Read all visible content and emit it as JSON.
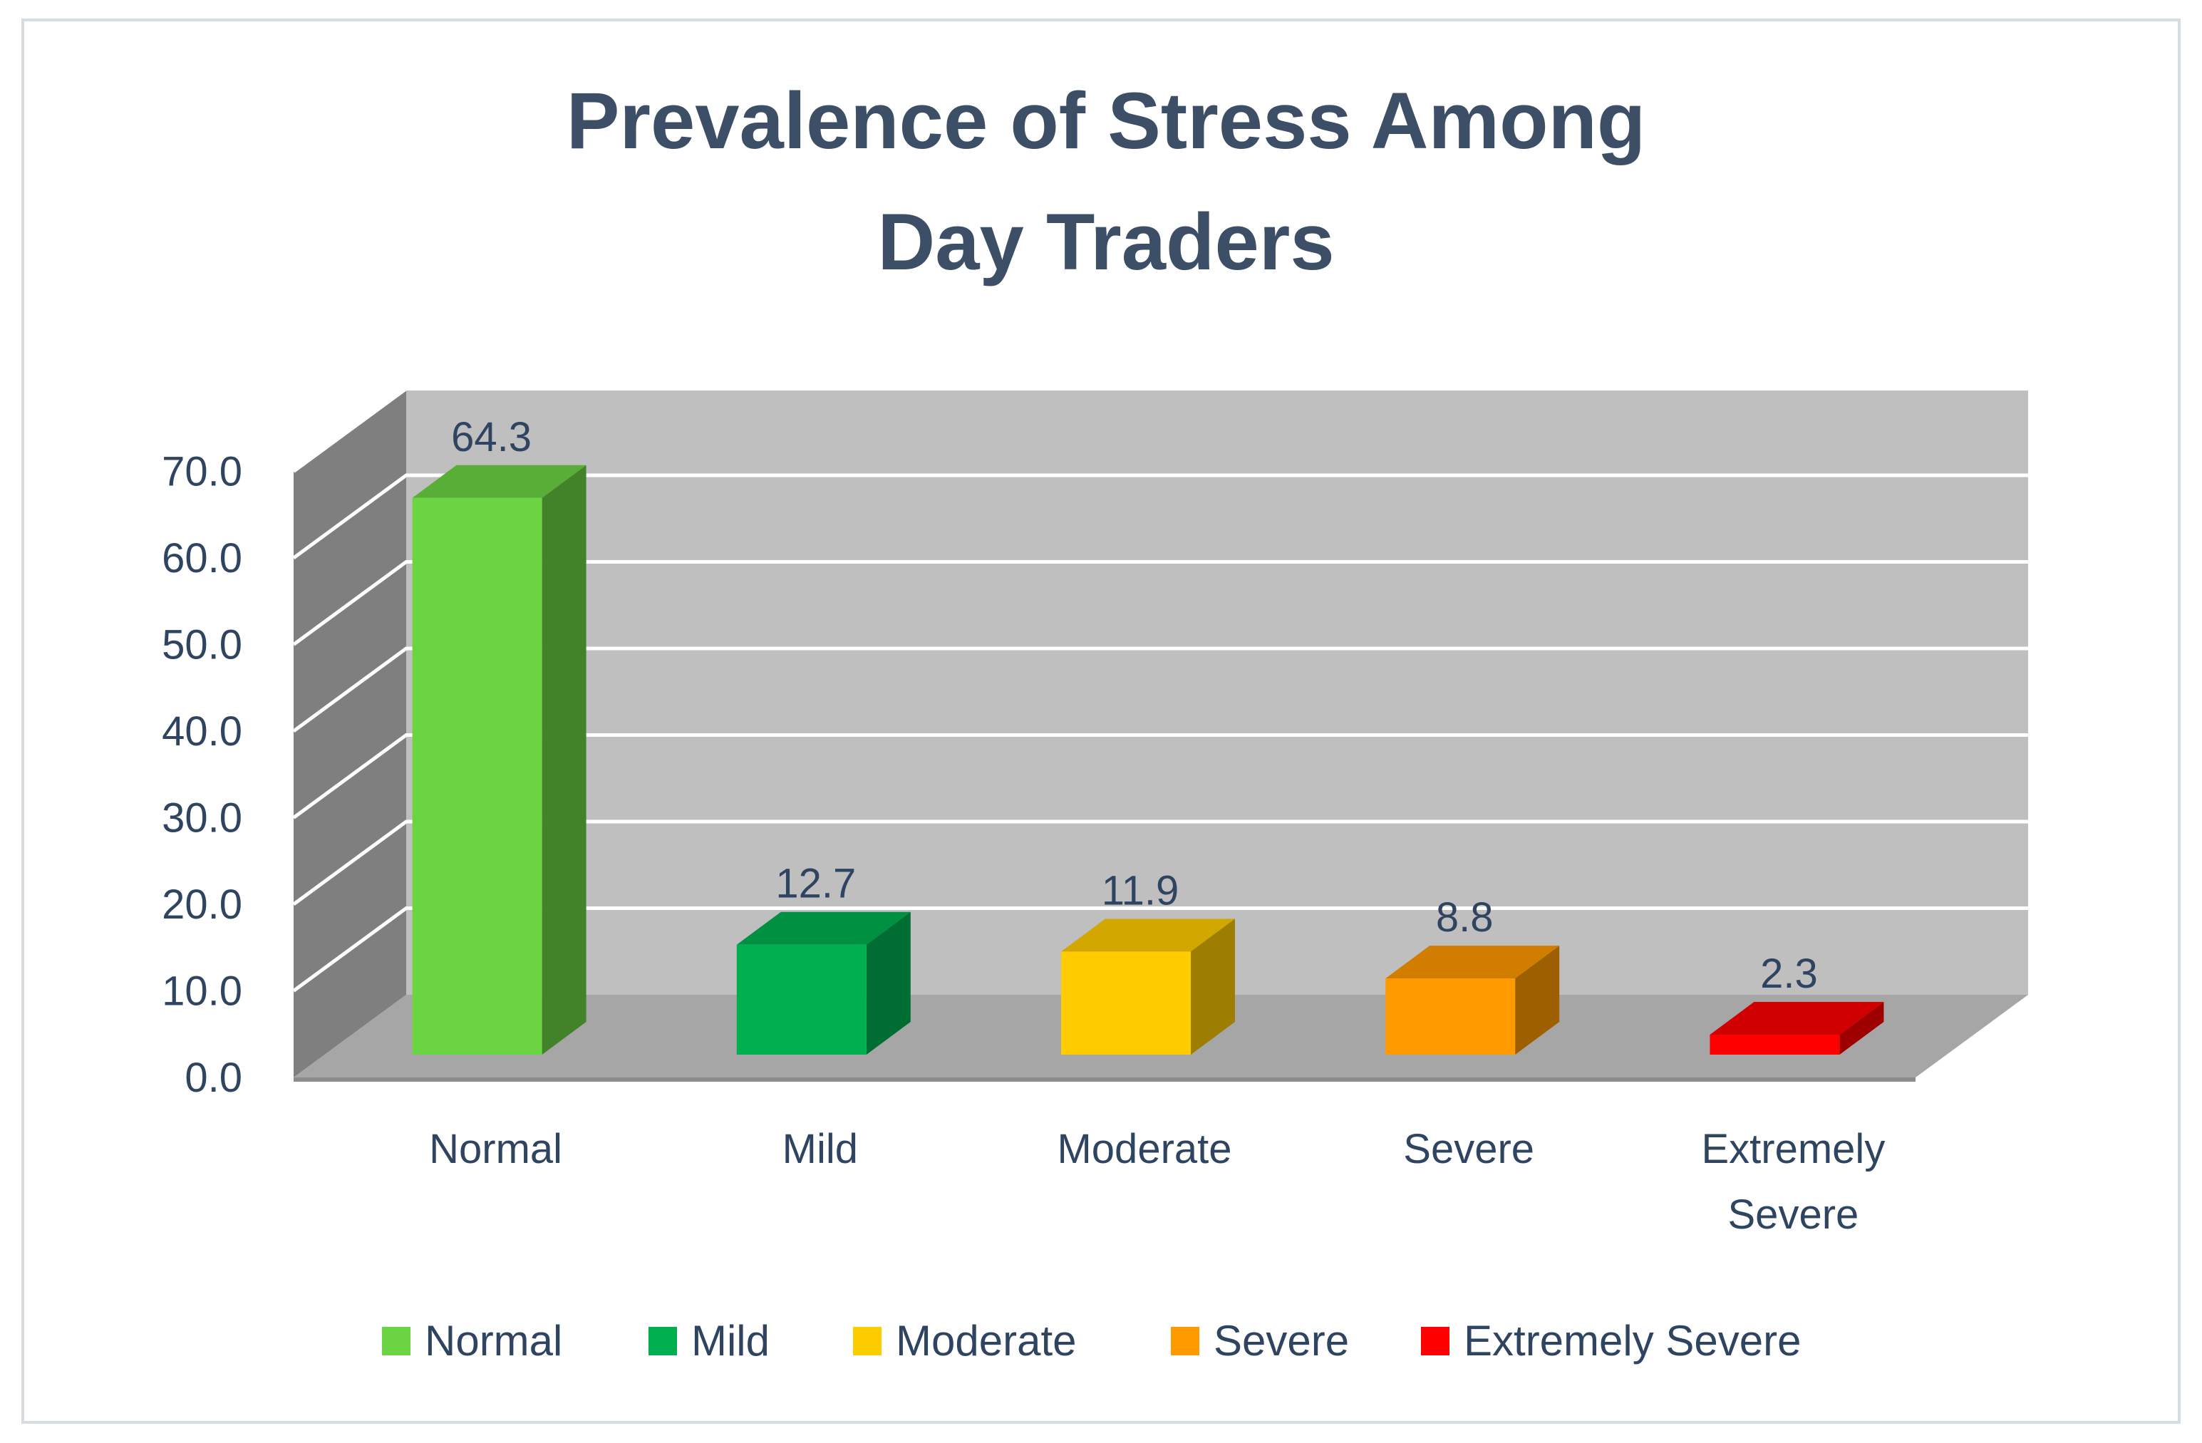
{
  "chart_data": {
    "type": "bar",
    "style": "3d-clustered-column",
    "title_lines": [
      "Prevalence of Stress Among",
      "Day Traders"
    ],
    "categories": [
      "Normal",
      "Mild",
      "Moderate",
      "Severe",
      "Extremely Severe"
    ],
    "category_label_lines": [
      [
        "Normal"
      ],
      [
        "Mild"
      ],
      [
        "Moderate"
      ],
      [
        "Severe"
      ],
      [
        "Extremely",
        "Severe"
      ]
    ],
    "values": [
      64.3,
      12.7,
      11.9,
      8.8,
      2.3
    ],
    "value_labels": [
      "64.3",
      "12.7",
      "11.9",
      "8.8",
      "2.3"
    ],
    "colors": [
      "#6bd443",
      "#00b050",
      "#ffcc00",
      "#ff9900",
      "#ff0000"
    ],
    "y_ticks": [
      "0.0",
      "10.0",
      "20.0",
      "30.0",
      "40.0",
      "50.0",
      "60.0",
      "70.0"
    ],
    "ylim": [
      0,
      70
    ],
    "xlabel": "",
    "ylabel": "",
    "grid": true,
    "legend": {
      "position": "bottom",
      "entries": [
        "Normal",
        "Mild",
        "Moderate",
        "Severe",
        "Extremely Severe"
      ]
    }
  }
}
